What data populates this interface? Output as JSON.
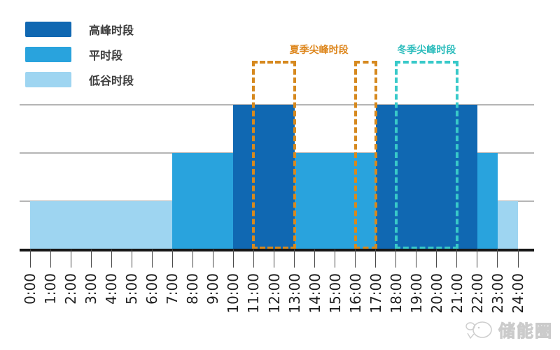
{
  "legend": {
    "items": [
      {
        "key": "peak",
        "label": "高峰时段",
        "color": "#1068b2"
      },
      {
        "key": "flat",
        "label": "平时段",
        "color": "#29a3dd"
      },
      {
        "key": "valley",
        "label": "低谷时段",
        "color": "#9ed5f1"
      }
    ]
  },
  "chart_data": {
    "type": "bar",
    "title": "",
    "x_axis": {
      "unit": "hour",
      "range": [
        0,
        24
      ],
      "ticks": [
        "0:00",
        "1:00",
        "2:00",
        "3:00",
        "4:00",
        "5:00",
        "6:00",
        "7:00",
        "8:00",
        "9:00",
        "10:00",
        "11:00",
        "12:00",
        "13:00",
        "14:00",
        "15:00",
        "16:00",
        "17:00",
        "18:00",
        "19:00",
        "20:00",
        "21:00",
        "22:00",
        "23:00",
        "24:00"
      ]
    },
    "y_axis": {
      "levels": 3,
      "tick_labels_visible": false,
      "grid": true
    },
    "periods": {
      "peak": {
        "label": "高峰时段",
        "level": 3,
        "color": "#1068b2"
      },
      "flat": {
        "label": "平时段",
        "level": 2,
        "color": "#29a3dd"
      },
      "valley": {
        "label": "低谷时段",
        "level": 1,
        "color": "#9ed5f1"
      }
    },
    "segments": [
      {
        "from_hour": 0,
        "to_hour": 7,
        "period": "valley"
      },
      {
        "from_hour": 7,
        "to_hour": 10,
        "period": "flat"
      },
      {
        "from_hour": 10,
        "to_hour": 13,
        "period": "peak"
      },
      {
        "from_hour": 13,
        "to_hour": 17,
        "period": "flat"
      },
      {
        "from_hour": 17,
        "to_hour": 22,
        "period": "peak"
      },
      {
        "from_hour": 22,
        "to_hour": 23,
        "period": "flat"
      },
      {
        "from_hour": 23,
        "to_hour": 24,
        "period": "valley"
      }
    ],
    "annotations": [
      {
        "id": "summer",
        "label": "夏季尖峰时段",
        "text_color": "#dd861c",
        "box_color": "#d6891f",
        "boxes": [
          {
            "from_hour": 11,
            "to_hour": 13
          },
          {
            "from_hour": 16,
            "to_hour": 17
          }
        ]
      },
      {
        "id": "winter",
        "label": "冬季尖峰时段",
        "text_color": "#2bbcbc",
        "box_color": "#38c9c9",
        "boxes": [
          {
            "from_hour": 18,
            "to_hour": 21
          }
        ]
      }
    ],
    "colors": {
      "gridline": "#b5b5b5",
      "axis": "#171717"
    }
  },
  "watermark": {
    "text": "储能圈"
  }
}
